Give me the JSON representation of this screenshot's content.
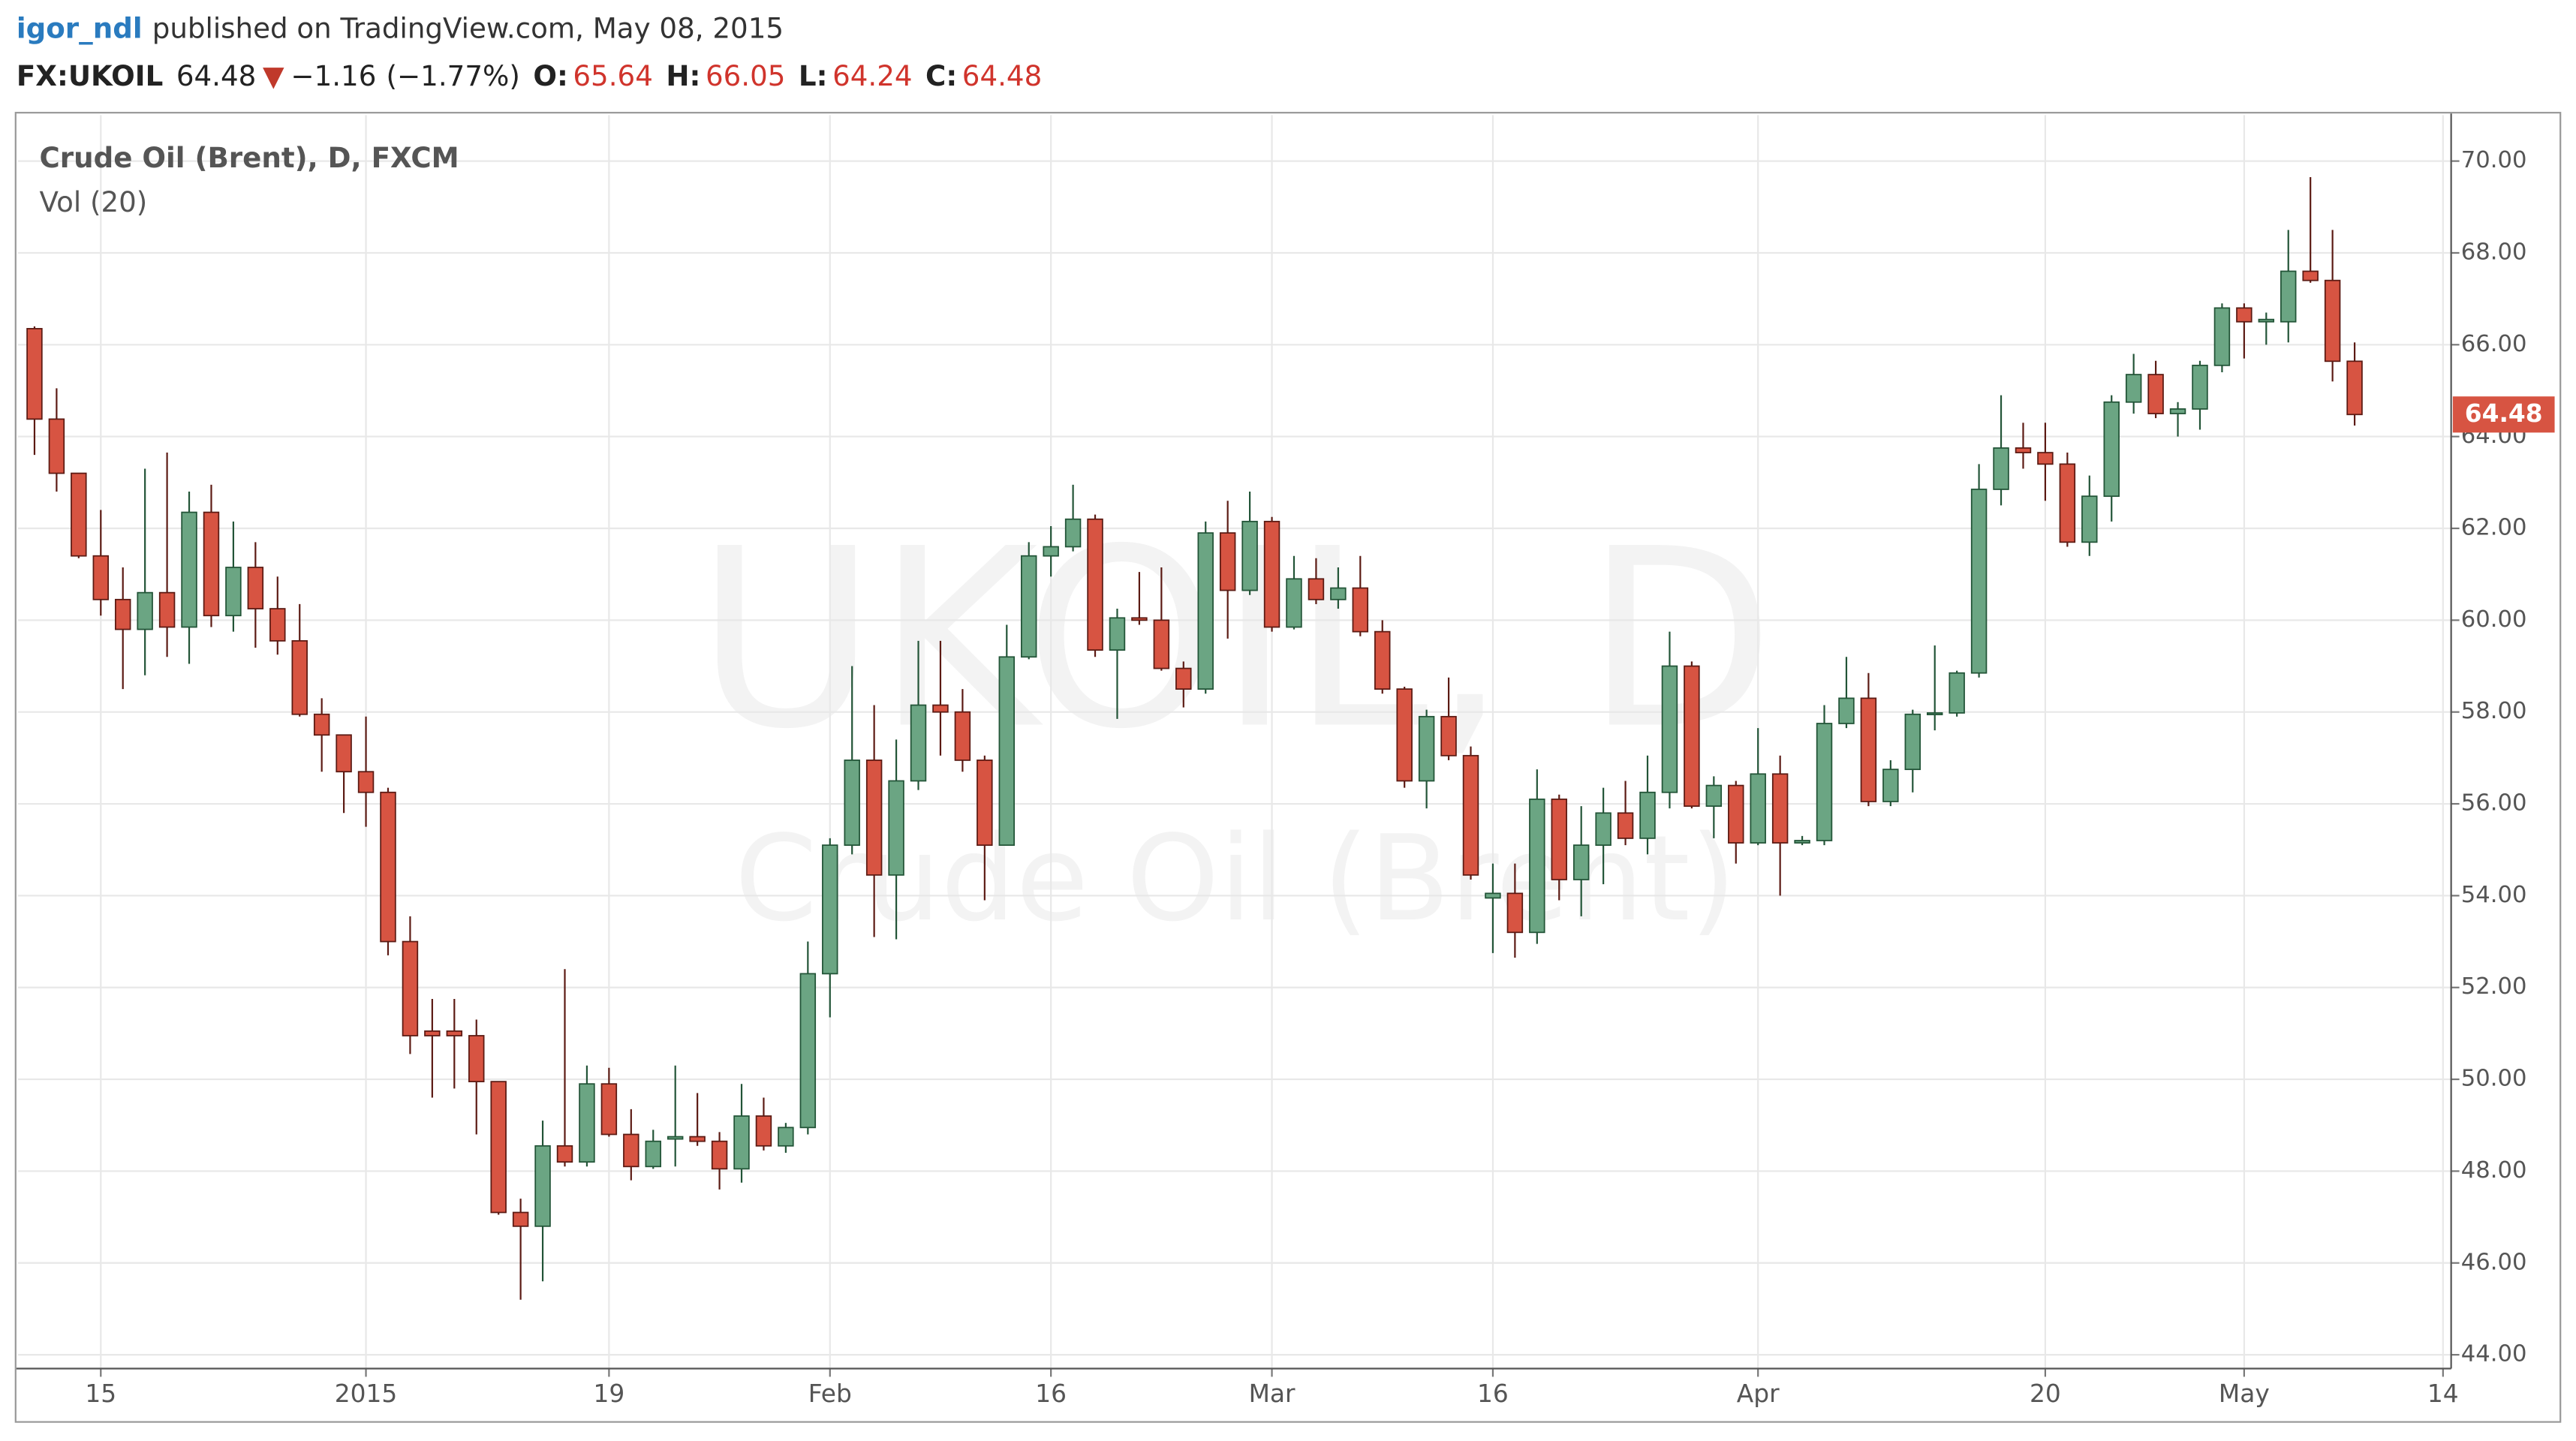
{
  "header": {
    "author": "igor_ndl",
    "published": "published on TradingView.com, May 08, 2015"
  },
  "chart_data": {
    "type": "candlestick",
    "symbol_info": {
      "symbol": "FX:UKOIL",
      "last": "64.48",
      "change": "−1.16",
      "change_pct": "(−1.77%)",
      "open_label": "O:",
      "open": "65.64",
      "high_label": "H:",
      "high": "66.05",
      "low_label": "L:",
      "low": "64.24",
      "close_label": "C:",
      "close": "64.48"
    },
    "title": "Crude Oil (Brent), D, FXCM",
    "subtitle": "Vol (20)",
    "watermark": "UKOIL, D",
    "watermark_subtitle": "Crude Oil (Brent)",
    "up_color": "#6ba583",
    "down_color": "#d75442",
    "up_outline": "#225437",
    "down_outline": "#5b1a13",
    "grid": true,
    "categories": [
      null,
      null,
      null,
      "15",
      null,
      null,
      null,
      null,
      null,
      null,
      null,
      null,
      null,
      null,
      null,
      "2015",
      null,
      null,
      null,
      null,
      null,
      null,
      null,
      null,
      null,
      null,
      "19",
      null,
      null,
      null,
      null,
      null,
      null,
      null,
      null,
      null,
      "Feb",
      null,
      null,
      null,
      null,
      null,
      null,
      null,
      null,
      null,
      "16",
      null,
      null,
      null,
      null,
      null,
      null,
      null,
      null,
      null,
      "Mar",
      null,
      null,
      null,
      null,
      null,
      null,
      null,
      null,
      null,
      "16",
      null,
      null,
      null,
      null,
      null,
      null,
      null,
      null,
      null,
      null,
      null,
      "Apr",
      null,
      null,
      null,
      null,
      null,
      null,
      null,
      null,
      null,
      null,
      null,
      null,
      "20",
      null,
      null,
      null,
      null,
      null,
      null,
      null,
      null,
      "May",
      null,
      null,
      null,
      null,
      null,
      null,
      null,
      null,
      "14"
    ],
    "open": [
      66.35,
      64.38,
      63.2,
      61.4,
      60.45,
      59.8,
      60.6,
      59.85,
      62.35,
      60.1,
      61.15,
      60.25,
      59.55,
      57.95,
      57.5,
      56.7,
      56.25,
      53.0,
      51.05,
      51.05,
      50.95,
      49.95,
      47.1,
      46.8,
      48.55,
      48.2,
      49.9,
      48.8,
      48.1,
      48.7,
      48.75,
      48.65,
      48.05,
      49.2,
      48.55,
      48.95,
      52.3,
      55.1,
      56.95,
      54.45,
      56.5,
      58.15,
      58.0,
      56.95,
      55.1,
      59.2,
      61.4,
      61.6,
      62.2,
      59.35,
      60.05,
      60.0,
      58.95,
      58.5,
      61.9,
      60.65,
      62.15,
      59.85,
      60.9,
      60.45,
      60.7,
      59.75,
      58.5,
      56.5,
      57.9,
      57.05,
      53.95,
      54.05,
      53.2,
      56.1,
      54.35,
      55.1,
      55.8,
      55.25,
      56.25,
      59.0,
      55.95,
      56.4,
      55.15,
      56.65,
      55.15,
      55.2,
      57.75,
      58.3,
      56.05,
      56.75,
      57.95,
      57.98,
      58.85,
      62.85,
      63.75,
      63.65,
      63.4,
      61.7,
      62.7,
      64.75,
      65.35,
      64.5,
      64.6,
      65.55,
      66.8,
      66.5,
      66.5,
      67.6,
      67.4,
      65.64,
      null,
      null,
      null,
      null
    ],
    "high": [
      66.4,
      65.05,
      63.2,
      62.4,
      61.15,
      63.3,
      63.65,
      62.8,
      62.95,
      62.15,
      61.7,
      60.95,
      60.35,
      58.3,
      57.5,
      57.9,
      56.35,
      53.55,
      51.75,
      51.75,
      51.3,
      49.95,
      47.4,
      49.1,
      52.4,
      50.3,
      50.25,
      49.35,
      48.9,
      50.3,
      49.7,
      48.85,
      49.9,
      49.6,
      49.05,
      53.0,
      55.25,
      59.0,
      58.15,
      57.4,
      59.55,
      59.55,
      58.5,
      57.05,
      59.9,
      61.7,
      62.05,
      62.95,
      62.3,
      60.25,
      61.05,
      61.15,
      59.1,
      62.15,
      62.6,
      62.8,
      62.25,
      61.4,
      61.35,
      61.15,
      61.4,
      60.0,
      58.55,
      58.05,
      58.75,
      57.25,
      54.7,
      54.7,
      56.75,
      56.2,
      55.95,
      56.35,
      56.5,
      57.05,
      59.75,
      59.1,
      56.6,
      56.5,
      57.65,
      57.05,
      55.3,
      58.15,
      59.2,
      58.85,
      56.95,
      58.05,
      59.45,
      58.9,
      63.4,
      64.9,
      64.3,
      64.3,
      63.65,
      63.15,
      64.9,
      65.8,
      65.65,
      64.75,
      65.65,
      66.9,
      66.9,
      66.7,
      68.5,
      69.65,
      68.5,
      66.05,
      null,
      null,
      null,
      null
    ],
    "low": [
      63.6,
      62.8,
      61.35,
      60.1,
      58.5,
      58.8,
      59.2,
      59.05,
      59.85,
      59.75,
      59.4,
      59.25,
      57.9,
      56.7,
      55.8,
      55.5,
      52.7,
      50.55,
      49.6,
      49.8,
      48.8,
      47.05,
      45.2,
      45.6,
      48.1,
      48.1,
      48.75,
      47.8,
      48.05,
      48.1,
      48.55,
      47.6,
      47.75,
      48.45,
      48.4,
      48.8,
      51.35,
      54.9,
      53.1,
      53.05,
      56.3,
      57.05,
      56.7,
      53.9,
      55.1,
      59.15,
      60.95,
      61.5,
      59.2,
      57.85,
      59.9,
      58.9,
      58.1,
      58.4,
      59.6,
      60.55,
      59.75,
      59.8,
      60.35,
      60.25,
      59.65,
      58.4,
      56.35,
      55.9,
      56.95,
      54.35,
      52.75,
      52.65,
      52.95,
      53.9,
      53.55,
      54.25,
      55.1,
      54.9,
      55.9,
      55.9,
      55.25,
      54.7,
      55.1,
      54.0,
      55.1,
      55.1,
      57.65,
      55.95,
      55.95,
      56.25,
      57.6,
      57.9,
      58.75,
      62.5,
      63.3,
      62.6,
      61.6,
      61.4,
      62.15,
      64.5,
      64.4,
      64.0,
      64.15,
      65.4,
      65.7,
      66.0,
      66.05,
      67.35,
      65.2,
      64.24,
      null,
      null,
      null,
      null
    ],
    "close": [
      64.38,
      63.2,
      61.4,
      60.45,
      59.8,
      60.6,
      59.85,
      62.35,
      60.1,
      61.15,
      60.25,
      59.55,
      57.95,
      57.5,
      56.7,
      56.25,
      53.0,
      50.95,
      50.95,
      50.95,
      49.95,
      47.1,
      46.8,
      48.55,
      48.2,
      49.9,
      48.8,
      48.1,
      48.65,
      48.75,
      48.65,
      48.05,
      49.2,
      48.55,
      48.95,
      52.3,
      55.1,
      56.95,
      54.45,
      56.5,
      58.15,
      58.0,
      56.95,
      55.1,
      59.2,
      61.4,
      61.6,
      62.2,
      59.35,
      60.05,
      60.0,
      58.95,
      58.5,
      61.9,
      60.65,
      62.15,
      59.85,
      60.9,
      60.45,
      60.7,
      59.75,
      58.5,
      56.5,
      57.9,
      57.05,
      54.45,
      54.05,
      53.2,
      56.1,
      54.35,
      55.1,
      55.8,
      55.25,
      56.25,
      59.0,
      55.95,
      56.4,
      55.15,
      56.65,
      55.15,
      55.2,
      57.75,
      58.3,
      56.05,
      56.75,
      57.95,
      57.98,
      58.85,
      62.85,
      63.75,
      63.65,
      63.4,
      61.7,
      62.7,
      64.75,
      65.35,
      64.5,
      64.6,
      65.55,
      66.8,
      66.5,
      66.55,
      67.6,
      67.4,
      65.64,
      64.48,
      null,
      null,
      null,
      null
    ],
    "ylim": [
      43.7,
      71.0
    ],
    "yticks": [
      {
        "value": 44,
        "label": "44.00"
      },
      {
        "value": 46,
        "label": "46.00"
      },
      {
        "value": 48,
        "label": "48.00"
      },
      {
        "value": 50,
        "label": "50.00"
      },
      {
        "value": 52,
        "label": "52.00"
      },
      {
        "value": 54,
        "label": "54.00"
      },
      {
        "value": 56,
        "label": "56.00"
      },
      {
        "value": 58,
        "label": "58.00"
      },
      {
        "value": 60,
        "label": "60.00"
      },
      {
        "value": 62,
        "label": "62.00"
      },
      {
        "value": 64,
        "label": "64.00"
      },
      {
        "value": 66,
        "label": "66.00"
      },
      {
        "value": 68,
        "label": "68.00"
      },
      {
        "value": 70,
        "label": "70.00"
      }
    ]
  }
}
